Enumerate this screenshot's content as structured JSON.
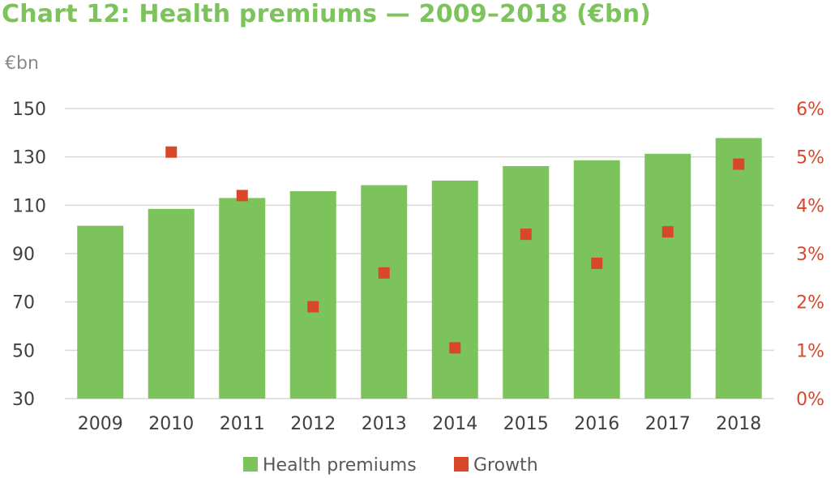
{
  "title": "Chart 12: Health premiums — 2009–2018 (€bn)",
  "unit_label": "€bn",
  "colors": {
    "bars": "#7DC35B",
    "markers": "#D9472B",
    "title": "#7DC35B",
    "grid": "#d9d9d9",
    "right_axis": "#D9472B"
  },
  "chart_data": {
    "type": "bar",
    "categories": [
      "2009",
      "2010",
      "2011",
      "2012",
      "2013",
      "2014",
      "2015",
      "2016",
      "2017",
      "2018"
    ],
    "series": [
      {
        "name": "Health premiums",
        "type": "bar",
        "axis": "left",
        "values": [
          101.5,
          108.5,
          113,
          115.8,
          118.3,
          120.2,
          126.2,
          128.6,
          131.3,
          137.8
        ]
      },
      {
        "name": "Growth",
        "type": "scatter",
        "axis": "right",
        "values": [
          null,
          5.1,
          4.2,
          1.9,
          2.6,
          1.05,
          3.4,
          2.8,
          3.45,
          4.85
        ]
      }
    ],
    "ylim": [
      30,
      150
    ],
    "yticks": [
      "30",
      "50",
      "70",
      "90",
      "110",
      "130",
      "150"
    ],
    "y2lim": [
      0,
      6
    ],
    "y2ticks": [
      "0%",
      "1%",
      "2%",
      "3%",
      "4%",
      "5%",
      "6%"
    ],
    "grid": true,
    "legend_position": "bottom"
  }
}
